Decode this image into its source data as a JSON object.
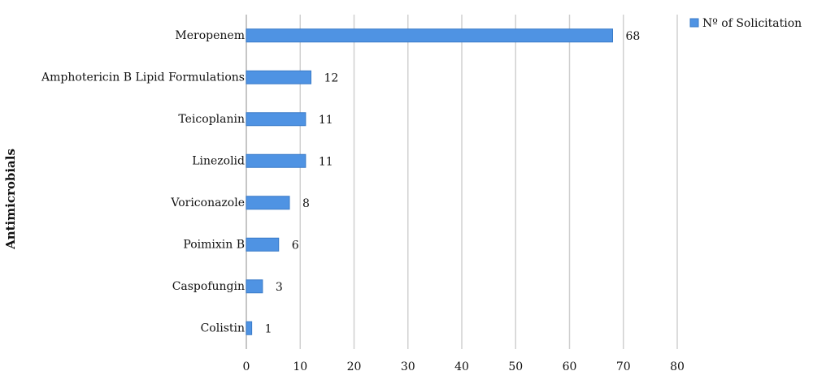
{
  "chart_data": {
    "type": "bar",
    "orientation": "horizontal",
    "y_label": "Antimicrobials",
    "categories": [
      "Meropenem",
      "Amphotericin B Lipid Formulations",
      "Teicoplanin",
      "Linezolid",
      "Voriconazole",
      "Poimixin B",
      "Caspofungin",
      "Colistin"
    ],
    "series": [
      {
        "name": "Nº of Solicitation",
        "color": "#4f93e3",
        "values": [
          68,
          12,
          11,
          11,
          8,
          6,
          3,
          1
        ]
      }
    ],
    "xlim": [
      0,
      80
    ],
    "xticks": [
      0,
      10,
      20,
      30,
      40,
      50,
      60,
      70,
      80
    ],
    "grid": true,
    "legend": "top-right",
    "data_labels": true
  }
}
